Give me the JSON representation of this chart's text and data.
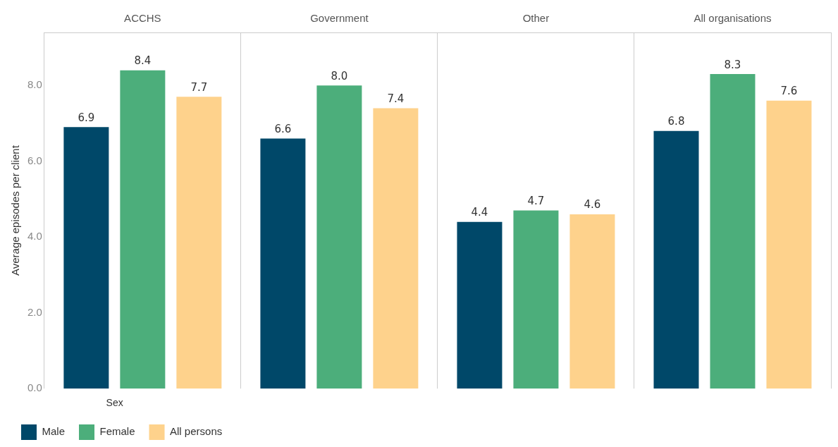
{
  "chart_data": {
    "type": "bar",
    "ylabel": "Average episodes per client",
    "legend_title": "Sex",
    "categories": [
      "ACCHS",
      "Government",
      "Other",
      "All organisations"
    ],
    "series": [
      {
        "name": "Male",
        "color": "#004869",
        "values": [
          6.9,
          6.6,
          4.4,
          6.8
        ],
        "value_labels": [
          "6.9",
          "6.6",
          "4.4",
          "6.8"
        ]
      },
      {
        "name": "Female",
        "color": "#4cae7b",
        "values": [
          8.4,
          8.0,
          4.7,
          8.3
        ],
        "value_labels": [
          "8.4",
          "8.0",
          "4.7",
          "8.3"
        ]
      },
      {
        "name": "All persons",
        "color": "#fed28c",
        "values": [
          7.7,
          7.4,
          4.6,
          7.6
        ],
        "value_labels": [
          "7.7",
          "7.4",
          "4.6",
          "7.6"
        ]
      }
    ],
    "ylim": [
      0,
      9.4
    ],
    "yticks": [
      {
        "value": 0,
        "label": "0.0"
      },
      {
        "value": 2,
        "label": "2.0"
      },
      {
        "value": 4,
        "label": "4.0"
      },
      {
        "value": 6,
        "label": "6.0"
      },
      {
        "value": 8,
        "label": "8.0"
      }
    ],
    "grid": "x",
    "legend": "bottom left"
  }
}
